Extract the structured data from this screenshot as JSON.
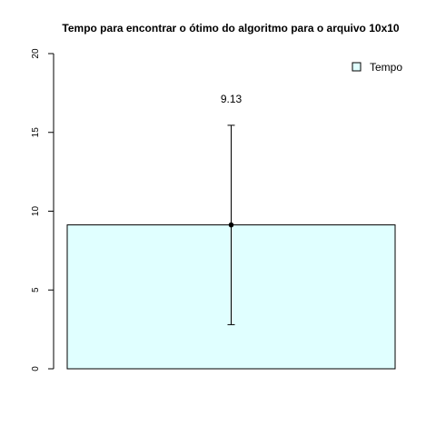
{
  "chart_data": {
    "type": "bar",
    "title": "Tempo para encontrar o ótimo do algoritmo para o arquivo 10x10",
    "xlabel": "",
    "ylabel": "",
    "ylim": [
      0,
      20
    ],
    "yticks": [
      0,
      5,
      10,
      15,
      20
    ],
    "series": [
      {
        "name": "Tempo",
        "value": 9.13,
        "error_low": 2.8,
        "error_high": 15.45,
        "label": "9.13",
        "color": "#e0ffff"
      }
    ],
    "legend": {
      "position": "top-right",
      "entries": [
        "Tempo"
      ]
    },
    "grid": false
  }
}
